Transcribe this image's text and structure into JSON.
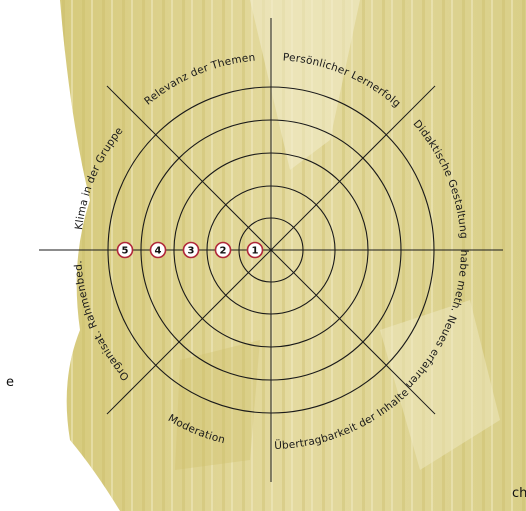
{
  "diagram": {
    "segments": [
      "Relevanz der Themen",
      "Persönlicher Lernerfolg",
      "Didaktische Gestaltung",
      "habe meth. Neues erfahren",
      "Übertragbarkeit der Inhalte",
      "Moderation",
      "Organisat. Rahmenbed.",
      "Klima in der Gruppe"
    ],
    "scale": [
      "1",
      "2",
      "3",
      "4",
      "5"
    ],
    "edge_fragment_bottom": "cheibe",
    "edge_fragment_left": "e",
    "colors": {
      "parchment": "#dfd48e",
      "parchment_light": "#efe8b8",
      "line": "#1a1a1a",
      "badge_ring": "#b0283a"
    }
  }
}
